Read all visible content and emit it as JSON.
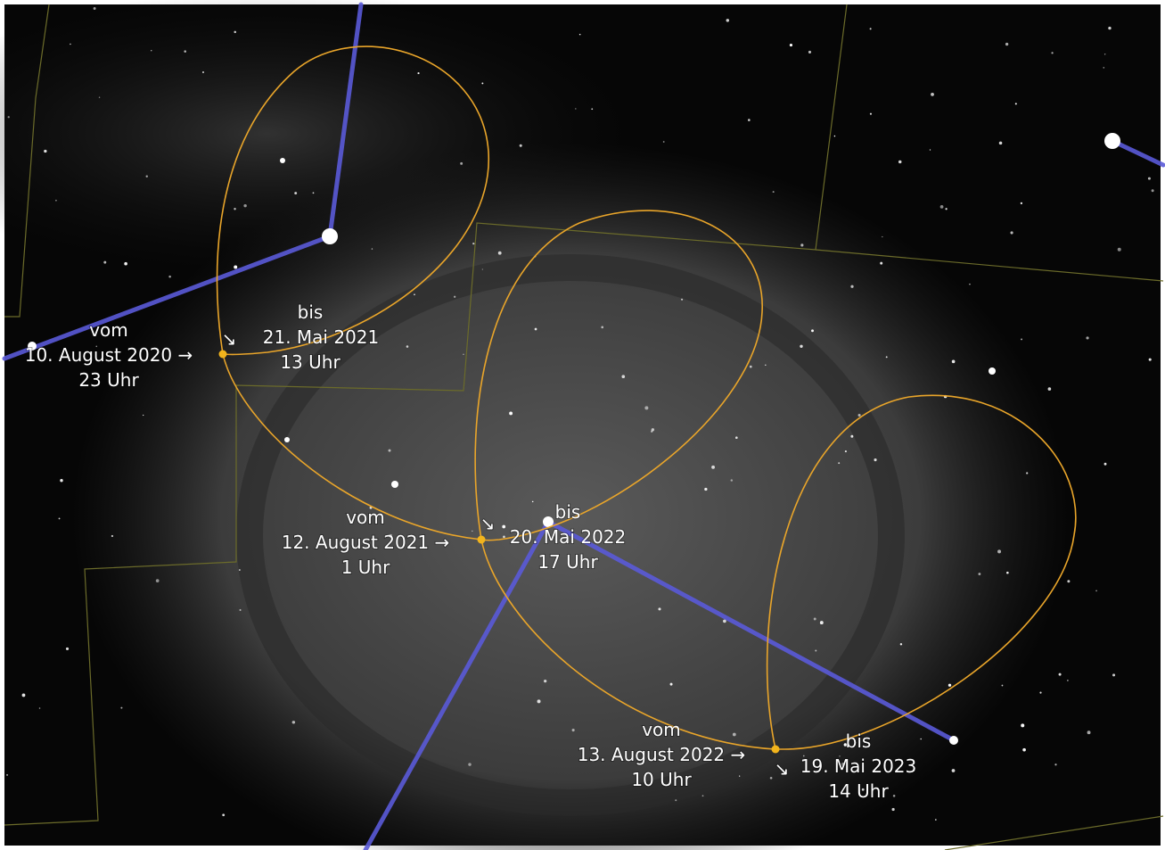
{
  "labels": [
    {
      "lines": [
        "vom",
        "10. August 2020 →",
        "23 Uhr"
      ]
    },
    {
      "arrow": "↘",
      "lines": [
        "bis",
        "21. Mai 2021",
        "13 Uhr"
      ]
    },
    {
      "lines": [
        "vom",
        "12. August 2021 →",
        "1 Uhr"
      ]
    },
    {
      "arrow": "↘",
      "lines": [
        "bis",
        "20. Mai 2022",
        "17 Uhr"
      ]
    },
    {
      "lines": [
        "vom",
        "13. August 2022 →",
        "10 Uhr"
      ]
    },
    {
      "arrow": "↘",
      "lines": [
        "bis",
        "19. Mai 2023",
        "14 Uhr"
      ]
    }
  ]
}
